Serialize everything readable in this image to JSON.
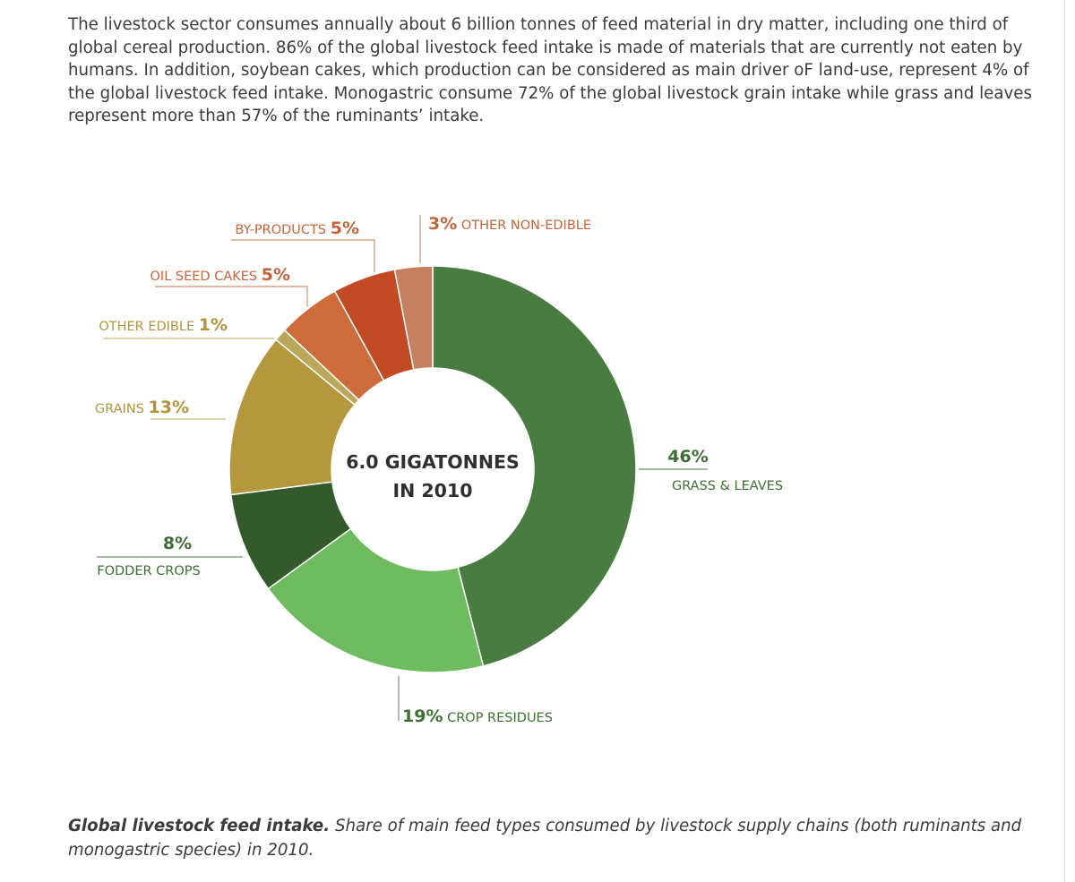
{
  "intro_text": "The livestock sector consumes annually about 6 billion tonnes of feed material in dry matter, including one third of global cereal production. 86% of the global livestock feed intake is made of materials that are currently not eaten by humans. In addition, soybean cakes, which production can be considered as main driver oF land-use, represent 4% of the global livestock feed intake. Monogastric consume 72% of the global livestock grain intake while grass and leaves represent more than 57% of the ruminants’ intake.",
  "chart_data": {
    "type": "pie",
    "style": "donut",
    "center_label": [
      "6.0 GIGATONNES",
      "IN 2010"
    ],
    "start": "12 o'clock",
    "direction": "clockwise",
    "slices": [
      {
        "label": "GRASS & LEAVES",
        "value": 46,
        "display": "46%",
        "color": "#497c40"
      },
      {
        "label": "CROP RESIDUES",
        "value": 19,
        "display": "19%",
        "color": "#6fbb60"
      },
      {
        "label": "FODDER CROPS",
        "value": 8,
        "display": "8%",
        "color": "#335a2b"
      },
      {
        "label": "GRAINS",
        "value": 13,
        "display": "13%",
        "color": "#b5973d"
      },
      {
        "label": "OTHER EDIBLE",
        "value": 1,
        "display": "1%",
        "color": "#b9a75b"
      },
      {
        "label": "OIL SEED CAKES",
        "value": 5,
        "display": "5%",
        "color": "#cd6c3a"
      },
      {
        "label": "BY-PRODUCTS",
        "value": 5,
        "display": "5%",
        "color": "#c24a24"
      },
      {
        "label": "OTHER NON-EDIBLE",
        "value": 3,
        "display": "3%",
        "color": "#c6805f"
      }
    ],
    "label_colors": {
      "green": "#3f6e35",
      "gold": "#b3943a",
      "orange": "#c4643a",
      "line_green": "#8f9f89",
      "line_orange": "#d9a385",
      "line_gold": "#d8c48f"
    }
  },
  "caption": {
    "bold": "Global livestock feed intake.",
    "text": " Share of main feed types consumed by livestock supply chains (both ruminants and monogastric species) in 2010."
  }
}
